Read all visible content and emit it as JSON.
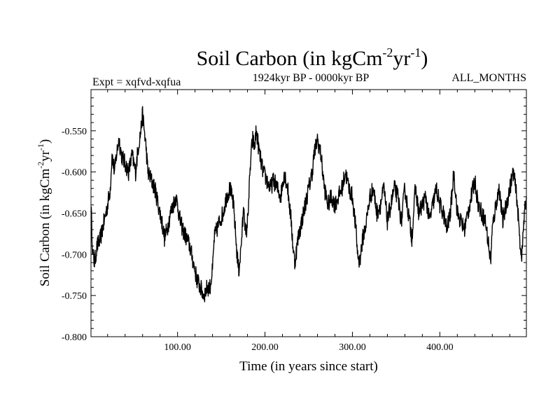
{
  "chart_data": {
    "type": "line",
    "title_main": "Soil Carbon (in kgCm",
    "title_sup1": "-2",
    "title_mid": "yr",
    "title_sup2": "-1",
    "title_end": ")",
    "experiment": "Expt = xqfvd-xqfua",
    "period": "1924kyr BP - 0000kyr BP",
    "months": "ALL_MONTHS",
    "xlabel": "Time (in years since start)",
    "ylabel_main": "Soil Carbon (in kgCm",
    "ylabel_sup1": "-2",
    "ylabel_mid": "yr",
    "ylabel_sup2": "-1",
    "ylabel_end": ")",
    "xlim": [
      1,
      499
    ],
    "ylim": [
      -0.8,
      -0.5
    ],
    "x_ticks": [
      {
        "value": 100,
        "label": "100.00"
      },
      {
        "value": 200,
        "label": "200.00"
      },
      {
        "value": 300,
        "label": "300.00"
      },
      {
        "value": 400,
        "label": "400.00"
      }
    ],
    "y_ticks": [
      {
        "value": -0.55,
        "label": "-0.550"
      },
      {
        "value": -0.6,
        "label": "-0.600"
      },
      {
        "value": -0.65,
        "label": "-0.650"
      },
      {
        "value": -0.7,
        "label": "-0.700"
      },
      {
        "value": -0.75,
        "label": "-0.750"
      },
      {
        "value": -0.8,
        "label": "-0.800"
      }
    ],
    "grid": false,
    "series": [
      {
        "color": "#000000",
        "x": [
          1,
          3,
          5,
          8,
          12,
          16,
          20,
          23,
          25,
          28,
          30,
          33,
          36,
          40,
          44,
          48,
          52,
          55,
          58,
          60,
          62,
          64,
          66,
          70,
          74,
          78,
          80,
          82,
          85,
          88,
          90,
          92,
          95,
          98,
          100,
          103,
          106,
          110,
          114,
          118,
          122,
          126,
          130,
          134,
          137,
          140,
          142,
          145,
          148,
          152,
          156,
          160,
          164,
          168,
          170,
          172,
          174,
          176,
          178,
          180,
          182,
          184,
          186,
          188,
          190,
          194,
          198,
          202,
          206,
          210,
          214,
          218,
          222,
          226,
          228,
          230,
          232,
          234,
          238,
          242,
          246,
          250,
          254,
          256,
          258,
          260,
          264,
          268,
          272,
          276,
          280,
          284,
          288,
          292,
          296,
          300,
          304,
          306,
          308,
          312,
          316,
          320,
          324,
          328,
          332,
          336,
          340,
          344,
          348,
          352,
          356,
          360,
          364,
          368,
          372,
          376,
          380,
          384,
          388,
          392,
          396,
          400,
          404,
          408,
          412,
          416,
          420,
          424,
          428,
          432,
          436,
          440,
          444,
          448,
          452,
          456,
          458,
          460,
          464,
          468,
          472,
          476,
          480,
          484,
          488,
          490,
          492,
          494,
          496,
          499
        ],
        "y": [
          -0.64,
          -0.7,
          -0.71,
          -0.69,
          -0.68,
          -0.66,
          -0.64,
          -0.62,
          -0.58,
          -0.6,
          -0.58,
          -0.56,
          -0.58,
          -0.59,
          -0.6,
          -0.58,
          -0.6,
          -0.57,
          -0.55,
          -0.53,
          -0.55,
          -0.57,
          -0.6,
          -0.61,
          -0.62,
          -0.64,
          -0.65,
          -0.66,
          -0.68,
          -0.67,
          -0.66,
          -0.65,
          -0.64,
          -0.63,
          -0.64,
          -0.66,
          -0.67,
          -0.68,
          -0.69,
          -0.71,
          -0.73,
          -0.74,
          -0.75,
          -0.74,
          -0.74,
          -0.72,
          -0.68,
          -0.67,
          -0.66,
          -0.65,
          -0.63,
          -0.62,
          -0.64,
          -0.7,
          -0.72,
          -0.7,
          -0.67,
          -0.64,
          -0.68,
          -0.66,
          -0.62,
          -0.58,
          -0.56,
          -0.57,
          -0.55,
          -0.58,
          -0.6,
          -0.61,
          -0.62,
          -0.61,
          -0.62,
          -0.63,
          -0.6,
          -0.62,
          -0.64,
          -0.66,
          -0.69,
          -0.71,
          -0.68,
          -0.66,
          -0.64,
          -0.62,
          -0.6,
          -0.58,
          -0.57,
          -0.56,
          -0.58,
          -0.62,
          -0.64,
          -0.63,
          -0.64,
          -0.63,
          -0.62,
          -0.6,
          -0.62,
          -0.63,
          -0.67,
          -0.7,
          -0.71,
          -0.68,
          -0.66,
          -0.63,
          -0.62,
          -0.65,
          -0.64,
          -0.62,
          -0.66,
          -0.64,
          -0.62,
          -0.63,
          -0.66,
          -0.62,
          -0.65,
          -0.68,
          -0.62,
          -0.65,
          -0.64,
          -0.63,
          -0.66,
          -0.64,
          -0.62,
          -0.64,
          -0.65,
          -0.67,
          -0.65,
          -0.6,
          -0.65,
          -0.66,
          -0.67,
          -0.65,
          -0.63,
          -0.61,
          -0.64,
          -0.65,
          -0.66,
          -0.69,
          -0.71,
          -0.67,
          -0.64,
          -0.62,
          -0.66,
          -0.64,
          -0.62,
          -0.6,
          -0.63,
          -0.66,
          -0.69,
          -0.7,
          -0.66,
          -0.63
        ]
      }
    ]
  }
}
